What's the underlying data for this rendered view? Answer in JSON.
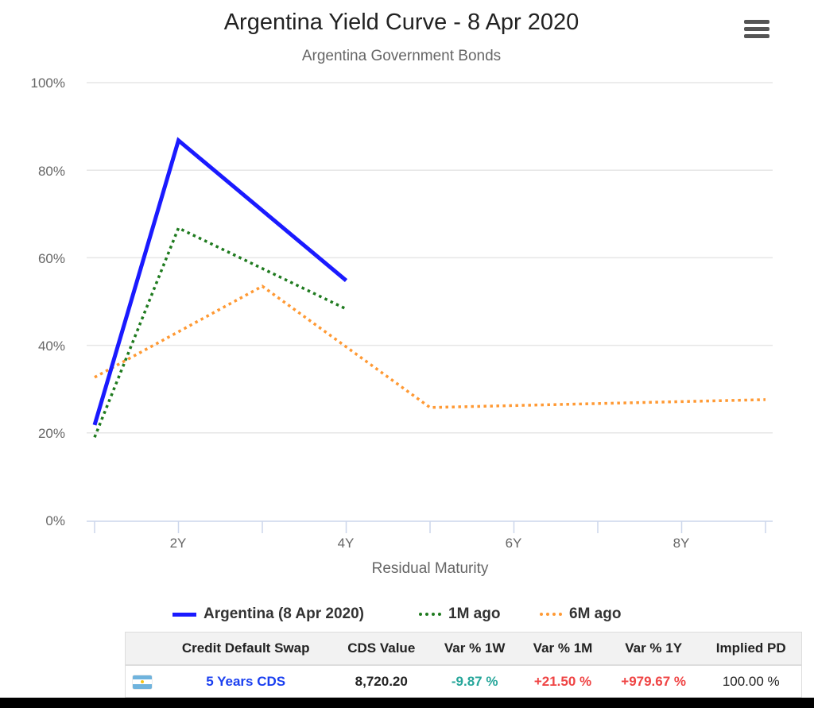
{
  "chart": {
    "title": "Argentina Yield Curve - 8 Apr 2020",
    "subtitle": "Argentina Government Bonds",
    "menu_icon": "hamburger-menu-icon"
  },
  "axes": {
    "y_ticks": [
      "100%",
      "80%",
      "60%",
      "40%",
      "20%",
      "0%"
    ],
    "x_ticks": [
      "2Y",
      "4Y",
      "6Y",
      "8Y"
    ],
    "x_title": "Residual Maturity"
  },
  "legend": {
    "items": [
      {
        "label": "Argentina (8 Apr 2020)",
        "color": "#1a1aff",
        "style": "solid"
      },
      {
        "label": "1M ago",
        "color": "#1e7a1e",
        "style": "dotted"
      },
      {
        "label": "6M ago",
        "color": "#ff9933",
        "style": "dotted"
      }
    ]
  },
  "table": {
    "headers": [
      "",
      "Credit Default Swap",
      "CDS Value",
      "Var % 1W",
      "Var % 1M",
      "Var % 1Y",
      "Implied PD"
    ],
    "row": {
      "flag": "argentina-flag",
      "name": "5 Years CDS",
      "value": "8,720.20",
      "var_1w": "-9.87 %",
      "var_1m": "+21.50 %",
      "var_1y": "+979.67 %",
      "implied_pd": "100.00 %"
    },
    "colors": {
      "negative": "#26a69a",
      "positive": "#ef4444",
      "link": "#1a3ff0"
    }
  },
  "chart_data": {
    "type": "line",
    "title": "Argentina Yield Curve - 8 Apr 2020",
    "subtitle": "Argentina Government Bonds",
    "xlabel": "Residual Maturity",
    "ylabel": "",
    "xlim": [
      1,
      9
    ],
    "ylim": [
      0,
      100
    ],
    "x_tick_labels": [
      "2Y",
      "4Y",
      "6Y",
      "8Y"
    ],
    "y_tick_labels": [
      "0%",
      "20%",
      "40%",
      "60%",
      "80%",
      "100%"
    ],
    "grid": true,
    "legend_position": "bottom",
    "series": [
      {
        "name": "Argentina (8 Apr 2020)",
        "color": "#1a1aff",
        "style": "solid",
        "points": [
          [
            1.0,
            21.8
          ],
          [
            2.0,
            86.8
          ],
          [
            4.0,
            54.8
          ]
        ]
      },
      {
        "name": "1M ago",
        "color": "#1e7a1e",
        "style": "dotted",
        "points": [
          [
            1.0,
            19.0
          ],
          [
            2.0,
            66.8
          ],
          [
            4.0,
            48.3
          ]
        ]
      },
      {
        "name": "6M ago",
        "color": "#ff9933",
        "style": "dotted",
        "points": [
          [
            1.0,
            32.7
          ],
          [
            3.0,
            53.5
          ],
          [
            5.0,
            25.8
          ],
          [
            9.0,
            27.6
          ]
        ]
      }
    ]
  }
}
